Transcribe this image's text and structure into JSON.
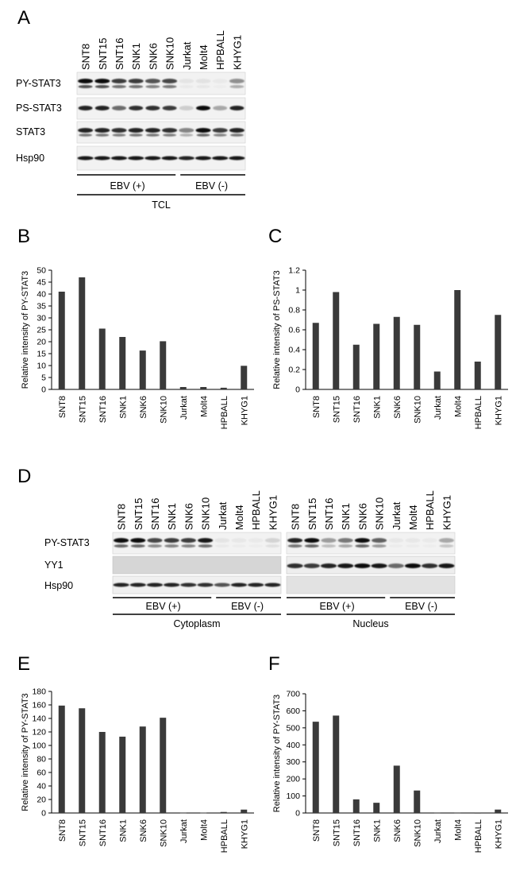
{
  "panel_labels": {
    "A": "A",
    "B": "B",
    "C": "C",
    "D": "D",
    "E": "E",
    "F": "F"
  },
  "blot_a": {
    "lanes": [
      "SNT8",
      "SNT15",
      "SNT16",
      "SNK1",
      "SNK6",
      "SNK10",
      "Jurkat",
      "Molt4",
      "HPBALL",
      "KHYG1"
    ],
    "rows": [
      "PY-STAT3",
      "PS-STAT3",
      "STAT3",
      "Hsp90"
    ],
    "groups": [
      "EBV (+)",
      "EBV (-)"
    ],
    "outer_group": "TCL"
  },
  "blot_d": {
    "lanes": [
      "SNT8",
      "SNT15",
      "SNT16",
      "SNK1",
      "SNK6",
      "SNK10",
      "Jurkat",
      "Molt4",
      "HPBALL",
      "KHYG1"
    ],
    "rows": [
      "PY-STAT3",
      "YY1",
      "Hsp90"
    ],
    "groups": [
      "EBV (+)",
      "EBV (-)"
    ],
    "fractions": [
      "Cytoplasm",
      "Nucleus"
    ]
  },
  "chart_data": [
    {
      "panel": "B",
      "type": "bar",
      "categories": [
        "SNT8",
        "SNT15",
        "SNT16",
        "SNK1",
        "SNK6",
        "SNK10",
        "Jurkat",
        "Molt4",
        "HPBALL",
        "KHYG1"
      ],
      "values": [
        41,
        47,
        25.5,
        22,
        16.3,
        20.2,
        1,
        1,
        0.7,
        9.9
      ],
      "ylabel": "Relative intensity of PY-STAT3",
      "ylim": [
        0,
        50
      ],
      "yticks": [
        0,
        5,
        10,
        15,
        20,
        25,
        30,
        35,
        40,
        45,
        50
      ],
      "yticklabels": [
        "0",
        "5",
        "10",
        "15",
        "20",
        "25",
        "30",
        "35",
        "40",
        "45",
        "50"
      ]
    },
    {
      "panel": "C",
      "type": "bar",
      "categories": [
        "SNT8",
        "SNT15",
        "SNT16",
        "SNK1",
        "SNK6",
        "SNK10",
        "Jurkat",
        "Molt4",
        "HPBALL",
        "KHYG1"
      ],
      "values": [
        0.67,
        0.98,
        0.45,
        0.66,
        0.73,
        0.65,
        0.18,
        1.0,
        0.28,
        0.75
      ],
      "ylabel": "Relative intensity of PS-STAT3",
      "ylim": [
        0,
        1.2
      ],
      "yticks": [
        0,
        0.2,
        0.4,
        0.6,
        0.8,
        1,
        1.2
      ],
      "yticklabels": [
        "0",
        "0.2",
        "0.4",
        "0.6",
        "0.8",
        "1",
        "1.2"
      ]
    },
    {
      "panel": "E",
      "type": "bar",
      "categories": [
        "SNT8",
        "SNT15",
        "SNT16",
        "SNK1",
        "SNK6",
        "SNK10",
        "Jurkat",
        "Molt4",
        "HPBALL",
        "KHYG1"
      ],
      "values": [
        159,
        155,
        120,
        113,
        128,
        141,
        0.3,
        0.5,
        1.5,
        5
      ],
      "ylabel": "Relative intensity of PY-STAT3",
      "ylim": [
        0,
        180
      ],
      "yticks": [
        0,
        20,
        40,
        60,
        80,
        100,
        120,
        140,
        160,
        180
      ],
      "yticklabels": [
        "0",
        "20",
        "40",
        "60",
        "80",
        "100",
        "120",
        "140",
        "160",
        "180"
      ]
    },
    {
      "panel": "F",
      "type": "bar",
      "categories": [
        "SNT8",
        "SNT15",
        "SNT16",
        "SNK1",
        "SNK6",
        "SNK10",
        "Jurkat",
        "Molt4",
        "HPBALL",
        "KHYG1"
      ],
      "values": [
        536,
        572,
        80,
        60,
        278,
        132,
        1,
        1,
        0.5,
        20
      ],
      "ylabel": "Relative intensity of PY-STAT3",
      "ylim": [
        0,
        700
      ],
      "yticks": [
        0,
        100,
        200,
        300,
        400,
        500,
        600,
        700
      ],
      "yticklabels": [
        "0",
        "100",
        "200",
        "300",
        "400",
        "500",
        "600",
        "700"
      ]
    }
  ]
}
